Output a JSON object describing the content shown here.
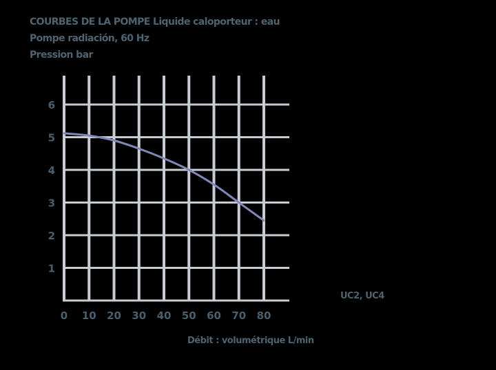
{
  "title": {
    "line1_bold": "COURBES DE LA POMPE",
    "line1_rest": "Liquide caloporteur : eau",
    "line2": "Pompe radiación, 60 Hz",
    "line3": "Pression bar"
  },
  "legend_label": "UC2, UC4",
  "colors": {
    "background": "#000000",
    "grid": "#c8cdd3",
    "curve": "#8088b8",
    "text": "#4e6370"
  },
  "chart_data": {
    "type": "line",
    "title": "COURBES DE LA POMPE Liquide caloporteur : eau — Pompe radiación, 60 Hz",
    "xlabel": "Débit : volumétrique L/min",
    "ylabel": "Pression bar",
    "x_ticks": [
      "0",
      "10",
      "20",
      "30",
      "40",
      "50",
      "60",
      "70",
      "80"
    ],
    "y_ticks": [
      "1",
      "2",
      "3",
      "4",
      "5",
      "6"
    ],
    "xlim": [
      0,
      80
    ],
    "ylim": [
      0,
      6
    ],
    "grid": true,
    "legend_position": "right",
    "series": [
      {
        "name": "UC2, UC4",
        "x": [
          0,
          10,
          20,
          30,
          40,
          50,
          60,
          70,
          80
        ],
        "values": [
          5.12,
          5.05,
          4.9,
          4.65,
          4.35,
          4.0,
          3.55,
          3.0,
          2.45
        ]
      }
    ]
  }
}
